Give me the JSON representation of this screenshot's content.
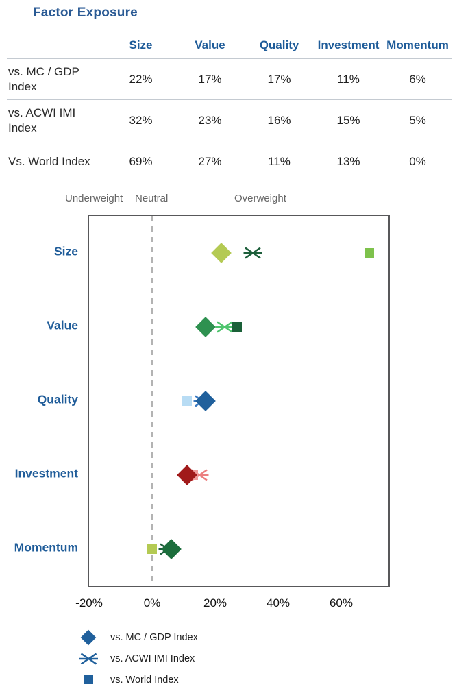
{
  "title": "Factor Exposure",
  "table": {
    "columns": [
      "Size",
      "Value",
      "Quality",
      "Investment",
      "Momentum"
    ],
    "rows": [
      {
        "label": "vs. MC / GDP Index",
        "values": [
          "22%",
          "17%",
          "17%",
          "11%",
          "6%"
        ]
      },
      {
        "label": "vs. ACWI IMI Index",
        "values": [
          "32%",
          "23%",
          "16%",
          "15%",
          "5%"
        ]
      },
      {
        "label": "Vs. World Index",
        "values": [
          "69%",
          "27%",
          "11%",
          "13%",
          "0%"
        ]
      }
    ]
  },
  "chart_data": {
    "type": "scatter",
    "orientation": "horizontal",
    "zone_labels": {
      "underweight": "Underweight",
      "neutral": "Neutral",
      "overweight": "Overweight"
    },
    "categories": [
      "Size",
      "Value",
      "Quality",
      "Investment",
      "Momentum"
    ],
    "x_ticks": [
      "-20%",
      "0%",
      "20%",
      "40%",
      "60%"
    ],
    "x_tick_values": [
      -20,
      0,
      20,
      40,
      60
    ],
    "xlim": [
      -20,
      75
    ],
    "neutral_line_x": 0,
    "grid": false,
    "series": [
      {
        "name": "vs. MC / GDP Index",
        "marker": "diamond",
        "values": [
          22,
          17,
          17,
          11,
          6
        ],
        "colors": [
          "#b4ca53",
          "#2e9150",
          "#20609c",
          "#a11a1a",
          "#1c6e3c"
        ]
      },
      {
        "name": "vs. ACWI IMI Index",
        "marker": "x",
        "values": [
          32,
          23,
          16,
          15,
          5
        ],
        "colors": [
          "#1c5e3a",
          "#4fc56e",
          "#3b7ac2",
          "#ec8080",
          "#1c5e3a"
        ]
      },
      {
        "name": "vs. World Index",
        "marker": "square",
        "values": [
          69,
          27,
          11,
          13,
          0
        ],
        "colors": [
          "#7ec24c",
          "#1a6038",
          "#b8dcf4",
          "#f09c9c",
          "#b4ca53"
        ]
      }
    ],
    "legend": [
      {
        "label": "vs. MC / GDP Index",
        "marker": "diamond"
      },
      {
        "label": "vs. ACWI IMI Index",
        "marker": "x"
      },
      {
        "label": "vs. World Index",
        "marker": "square"
      }
    ],
    "legend_position": "bottom-left",
    "legend_marker_color": "#20609c"
  },
  "colors": {
    "title": "#2a5a94",
    "header_text": "#1f5c99",
    "category_label": "#1f5c99",
    "zone_label": "#666666",
    "plot_border": "#58585a",
    "neutral_line": "#b3b3b3",
    "row_divider": "#c4cad1"
  }
}
